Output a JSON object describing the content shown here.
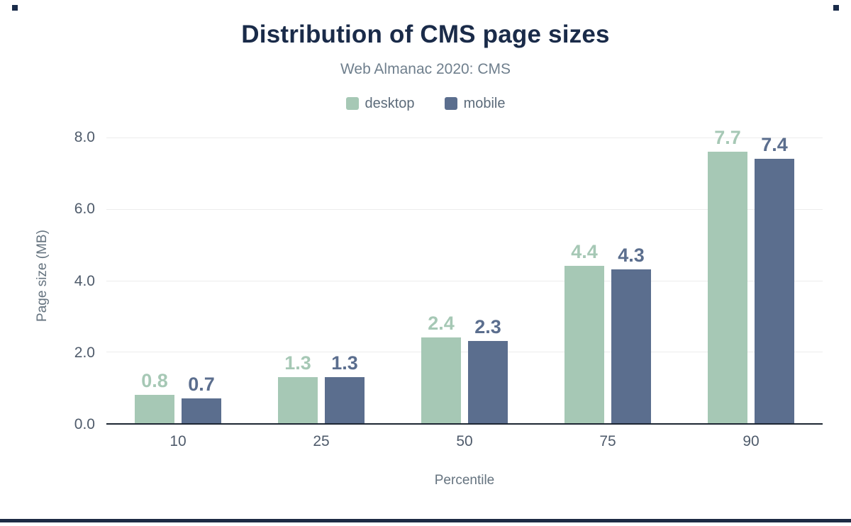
{
  "header": {
    "title": "Distribution of CMS page sizes",
    "subtitle": "Web Almanac 2020: CMS"
  },
  "legend": [
    {
      "label": "desktop",
      "color": "#a6c8b5"
    },
    {
      "label": "mobile",
      "color": "#5b6e8e"
    }
  ],
  "axes": {
    "y_label": "Page size (MB)",
    "x_label": "Percentile",
    "y_ticks": [
      "8.0",
      "6.0",
      "4.0",
      "2.0",
      "0.0"
    ]
  },
  "chart_data": {
    "type": "bar",
    "title": "Distribution of CMS page sizes",
    "subtitle": "Web Almanac 2020: CMS",
    "xlabel": "Percentile",
    "ylabel": "Page size (MB)",
    "categories": [
      "10",
      "25",
      "50",
      "75",
      "90"
    ],
    "series": [
      {
        "name": "desktop",
        "color": "#a6c8b5",
        "values": [
          0.8,
          1.3,
          2.4,
          4.4,
          7.7
        ],
        "labels": [
          "0.8",
          "1.3",
          "2.4",
          "4.4",
          "7.7"
        ]
      },
      {
        "name": "mobile",
        "color": "#5b6e8e",
        "values": [
          0.7,
          1.3,
          2.3,
          4.3,
          7.4
        ],
        "labels": [
          "0.7",
          "1.3",
          "2.3",
          "4.3",
          "7.4"
        ]
      }
    ],
    "ylim": [
      0,
      8.3
    ],
    "y_tick_step": 2,
    "grid": true,
    "legend_position": "top"
  }
}
